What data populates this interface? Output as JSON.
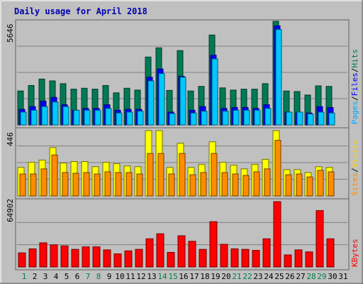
{
  "chart_data": [
    {
      "type": "bar",
      "title": "Daily usage for April 2018",
      "categories": [
        "1",
        "2",
        "3",
        "4",
        "5",
        "6",
        "7",
        "8",
        "9",
        "10",
        "11",
        "12",
        "13",
        "14",
        "15",
        "16",
        "17",
        "18",
        "19",
        "20",
        "21",
        "22",
        "23",
        "24",
        "25",
        "26",
        "27",
        "28",
        "29",
        "30",
        "31"
      ],
      "weekend_days": [
        "1",
        "7",
        "8",
        "14",
        "15",
        "21",
        "22",
        "28",
        "29"
      ],
      "ylim": [
        0,
        5646
      ],
      "max_label": "5646",
      "series": [
        {
          "name": "Pages",
          "color": "#00c8ff",
          "values": [
            700,
            800,
            1000,
            1250,
            1000,
            800,
            800,
            800,
            900,
            650,
            700,
            750,
            2400,
            2800,
            620,
            2600,
            650,
            750,
            3600,
            750,
            800,
            800,
            800,
            900,
            5200,
            700,
            700,
            600,
            700,
            650,
            0
          ]
        },
        {
          "name": "Files",
          "color": "#0000ff",
          "values": [
            850,
            1000,
            1300,
            1500,
            1100,
            800,
            900,
            900,
            1100,
            800,
            850,
            850,
            2600,
            3050,
            700,
            2650,
            800,
            1000,
            3800,
            900,
            950,
            950,
            900,
            1100,
            5400,
            700,
            650,
            650,
            1000,
            950,
            0
          ]
        },
        {
          "name": "Hits",
          "color": "#007a55",
          "values": [
            1850,
            2150,
            2500,
            2400,
            2250,
            1950,
            2000,
            1950,
            2150,
            1750,
            2000,
            1900,
            3700,
            4200,
            1880,
            4050,
            1850,
            2100,
            4900,
            2020,
            1900,
            1950,
            1950,
            2250,
            5646,
            1850,
            1820,
            1630,
            2130,
            2100,
            0
          ]
        }
      ]
    },
    {
      "type": "bar",
      "categories": [
        "1",
        "2",
        "3",
        "4",
        "5",
        "6",
        "7",
        "8",
        "9",
        "10",
        "11",
        "12",
        "13",
        "14",
        "15",
        "16",
        "17",
        "18",
        "19",
        "20",
        "21",
        "22",
        "23",
        "24",
        "25",
        "26",
        "27",
        "28",
        "29",
        "30",
        "31"
      ],
      "ylim": [
        0,
        446
      ],
      "max_label": "446",
      "series": [
        {
          "name": "Visits",
          "color": "#ffff00",
          "values": [
            195,
            230,
            245,
            330,
            225,
            235,
            235,
            200,
            230,
            220,
            205,
            200,
            446,
            446,
            195,
            360,
            195,
            215,
            370,
            230,
            210,
            185,
            215,
            250,
            446,
            180,
            180,
            160,
            200,
            195,
            0
          ]
        },
        {
          "name": "Sites",
          "color": "#ff8c00",
          "values": [
            150,
            150,
            185,
            280,
            160,
            155,
            160,
            150,
            165,
            160,
            160,
            150,
            290,
            290,
            150,
            290,
            145,
            160,
            290,
            160,
            150,
            140,
            165,
            185,
            380,
            145,
            150,
            130,
            175,
            165,
            0
          ]
        }
      ]
    },
    {
      "type": "bar",
      "categories": [
        "1",
        "2",
        "3",
        "4",
        "5",
        "6",
        "7",
        "8",
        "9",
        "10",
        "11",
        "12",
        "13",
        "14",
        "15",
        "16",
        "17",
        "18",
        "19",
        "20",
        "21",
        "22",
        "23",
        "24",
        "25",
        "26",
        "27",
        "28",
        "29",
        "30",
        "31"
      ],
      "ylim": [
        0,
        64902
      ],
      "max_label": "64902",
      "series": [
        {
          "name": "KBytes",
          "color": "#ff0000",
          "values": [
            14000,
            18000,
            24000,
            22000,
            21000,
            17500,
            20000,
            20000,
            17000,
            13000,
            16000,
            17500,
            28000,
            33000,
            14500,
            31000,
            25500,
            17500,
            45000,
            22500,
            18000,
            17500,
            16500,
            28000,
            64902,
            12000,
            17000,
            15000,
            56000,
            28000,
            0
          ]
        }
      ]
    }
  ],
  "legend_right_top": [
    "Pages",
    "/",
    "Files",
    "/",
    "Hits"
  ],
  "legend_right_mid": [
    "Sites",
    "/",
    "Visits"
  ],
  "legend_right_bot": [
    "KBytes"
  ],
  "colors": {
    "background": "#c0c0c0",
    "panel": "#c0c0c0",
    "title": "#0000b0",
    "weekday": "#000000",
    "weekend": "#00804a",
    "separator": "#808080",
    "legend_pages": "#00a8ff",
    "legend_files": "#0000ff",
    "legend_hits": "#007a55",
    "legend_sites": "#ff8c00",
    "legend_visits": "#ffd000",
    "legend_kbytes": "#ff0000"
  }
}
